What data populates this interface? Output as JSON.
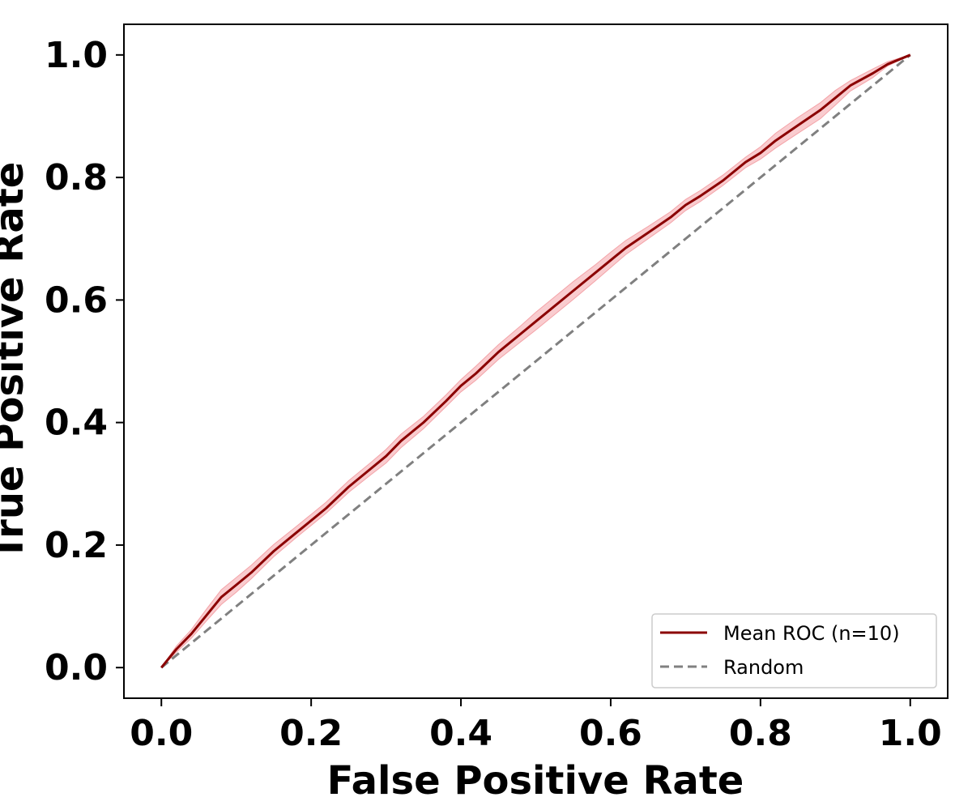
{
  "chart_data": {
    "type": "line",
    "title": "",
    "xlabel": "False Positive Rate",
    "ylabel": "True Positive Rate",
    "xlim": [
      -0.05,
      1.05
    ],
    "ylim": [
      -0.05,
      1.05
    ],
    "x_ticks": [
      "0.0",
      "0.2",
      "0.4",
      "0.6",
      "0.8",
      "1.0"
    ],
    "y_ticks": [
      "0.0",
      "0.2",
      "0.4",
      "0.6",
      "0.8",
      "1.0"
    ],
    "grid": false,
    "legend_position": "lower-right",
    "series": [
      {
        "name": "Mean ROC (n=10)",
        "style": "solid",
        "color": "#8b0000",
        "band_color": "#f4a3a8",
        "x": [
          0.0,
          0.02,
          0.04,
          0.06,
          0.08,
          0.1,
          0.12,
          0.15,
          0.18,
          0.2,
          0.22,
          0.25,
          0.28,
          0.3,
          0.32,
          0.35,
          0.38,
          0.4,
          0.42,
          0.45,
          0.48,
          0.5,
          0.52,
          0.55,
          0.58,
          0.6,
          0.62,
          0.65,
          0.68,
          0.7,
          0.72,
          0.75,
          0.78,
          0.8,
          0.82,
          0.85,
          0.88,
          0.9,
          0.92,
          0.95,
          0.97,
          1.0
        ],
        "y": [
          0.0,
          0.03,
          0.055,
          0.085,
          0.115,
          0.135,
          0.155,
          0.19,
          0.22,
          0.24,
          0.26,
          0.295,
          0.325,
          0.345,
          0.37,
          0.4,
          0.435,
          0.46,
          0.48,
          0.515,
          0.545,
          0.565,
          0.585,
          0.615,
          0.645,
          0.665,
          0.685,
          0.71,
          0.735,
          0.755,
          0.77,
          0.795,
          0.825,
          0.84,
          0.86,
          0.885,
          0.91,
          0.93,
          0.95,
          0.97,
          0.985,
          1.0
        ],
        "y_lower": [
          0.0,
          0.025,
          0.048,
          0.076,
          0.103,
          0.123,
          0.145,
          0.181,
          0.212,
          0.232,
          0.252,
          0.286,
          0.315,
          0.334,
          0.359,
          0.39,
          0.426,
          0.45,
          0.469,
          0.503,
          0.532,
          0.551,
          0.571,
          0.601,
          0.632,
          0.653,
          0.674,
          0.7,
          0.726,
          0.746,
          0.761,
          0.787,
          0.816,
          0.83,
          0.848,
          0.872,
          0.896,
          0.918,
          0.941,
          0.963,
          0.982,
          1.0
        ],
        "y_upper": [
          0.0,
          0.035,
          0.062,
          0.095,
          0.127,
          0.147,
          0.167,
          0.201,
          0.23,
          0.25,
          0.27,
          0.305,
          0.335,
          0.356,
          0.381,
          0.41,
          0.445,
          0.47,
          0.492,
          0.527,
          0.558,
          0.58,
          0.6,
          0.63,
          0.658,
          0.678,
          0.697,
          0.72,
          0.744,
          0.764,
          0.779,
          0.804,
          0.833,
          0.85,
          0.872,
          0.898,
          0.922,
          0.942,
          0.958,
          0.977,
          0.989,
          1.0
        ]
      },
      {
        "name": "Random",
        "style": "dashed",
        "color": "#808080",
        "x": [
          0.0,
          1.0
        ],
        "y": [
          0.0,
          1.0
        ]
      }
    ]
  }
}
